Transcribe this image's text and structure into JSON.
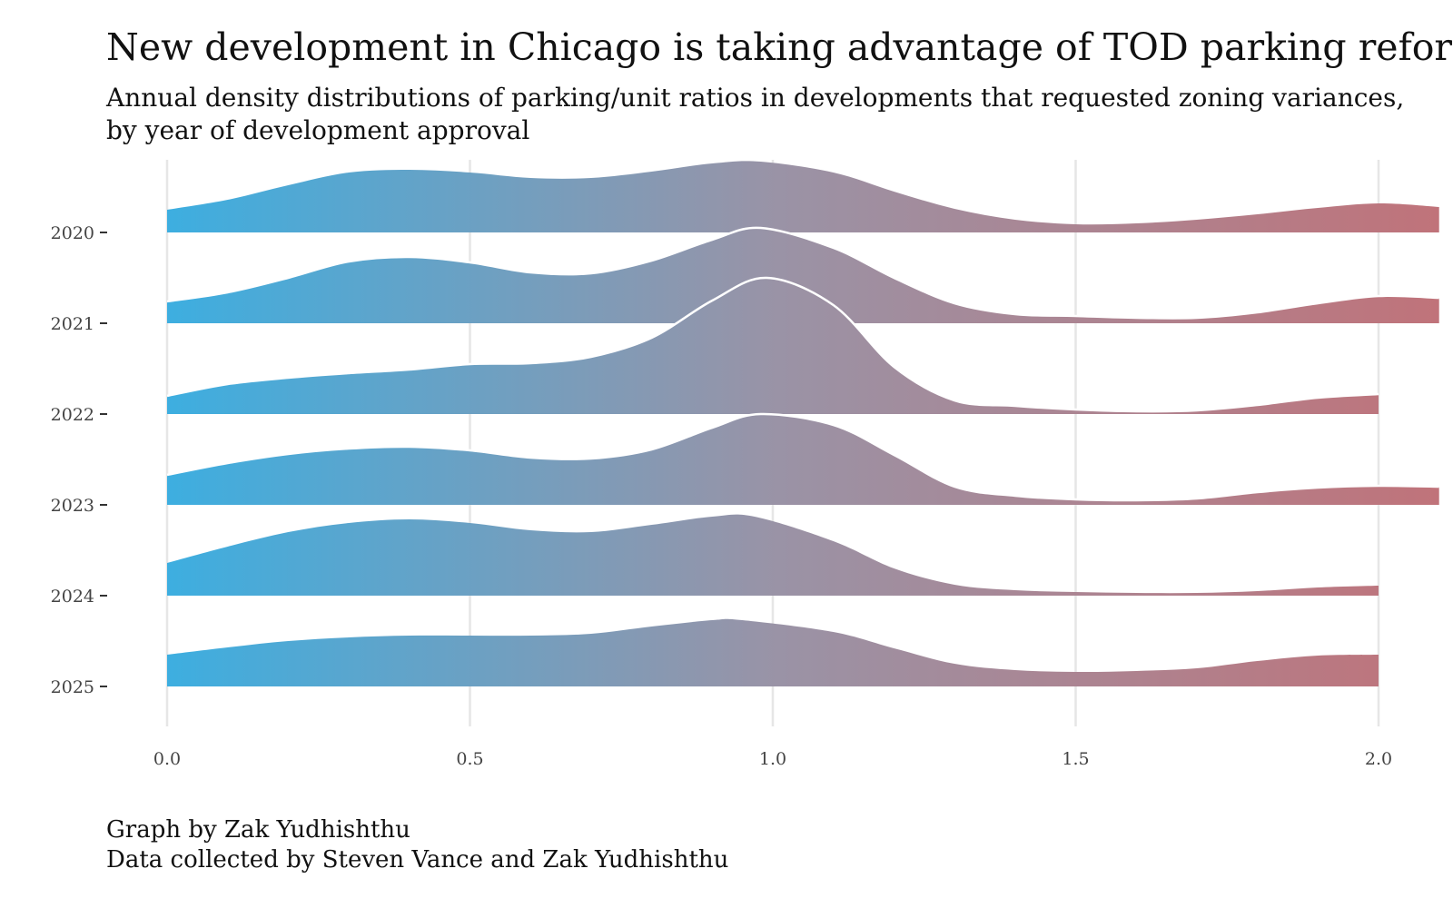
{
  "title": "New development in Chicago is taking advantage of TOD parking reforms",
  "subtitle_line1": "Annual density distributions of parking/unit ratios in developments that requested zoning variances,",
  "subtitle_line2": "by year of development approval",
  "caption_line1": "Graph by Zak Yudhishthu",
  "caption_line2": "Data collected by Steven Vance and Zak Yudhishthu",
  "colors": {
    "gradient_start": "#3daee0",
    "gradient_mid": "#9a93a6",
    "gradient_end": "#c0737a",
    "grid": "#e6e6e6",
    "outline": "#ffffff"
  },
  "chart_data": {
    "type": "ridgeline",
    "x_label": "",
    "y_label": "",
    "x_range": [
      0,
      2.1
    ],
    "x_ticks": [
      "0.0",
      "0.5",
      "1.0",
      "1.5",
      "2.0"
    ],
    "x_tick_values": [
      0,
      0.5,
      1.0,
      1.5,
      2.0
    ],
    "density_scale_note": "heights are relative density (1.0 = one row spacing)",
    "series": [
      {
        "name": "2020",
        "x_max": 2.1,
        "x": [
          0,
          0.1,
          0.2,
          0.3,
          0.4,
          0.5,
          0.6,
          0.7,
          0.8,
          0.9,
          0.98,
          1.1,
          1.2,
          1.3,
          1.4,
          1.5,
          1.6,
          1.7,
          1.8,
          1.9,
          2.0,
          2.1
        ],
        "y": [
          0.25,
          0.36,
          0.52,
          0.66,
          0.69,
          0.66,
          0.6,
          0.6,
          0.67,
          0.76,
          0.78,
          0.66,
          0.45,
          0.26,
          0.14,
          0.09,
          0.1,
          0.14,
          0.2,
          0.27,
          0.32,
          0.28
        ]
      },
      {
        "name": "2021",
        "x_max": 2.1,
        "x": [
          0,
          0.1,
          0.2,
          0.3,
          0.4,
          0.5,
          0.6,
          0.7,
          0.8,
          0.9,
          0.98,
          1.1,
          1.2,
          1.3,
          1.4,
          1.5,
          1.6,
          1.7,
          1.8,
          1.9,
          2.0,
          2.1
        ],
        "y": [
          0.24,
          0.34,
          0.5,
          0.68,
          0.73,
          0.67,
          0.56,
          0.55,
          0.69,
          0.92,
          1.05,
          0.83,
          0.5,
          0.22,
          0.1,
          0.08,
          0.06,
          0.06,
          0.12,
          0.22,
          0.3,
          0.28
        ]
      },
      {
        "name": "2022",
        "x_max": 2.0,
        "x": [
          0,
          0.1,
          0.2,
          0.3,
          0.4,
          0.5,
          0.6,
          0.7,
          0.8,
          0.9,
          0.99,
          1.1,
          1.2,
          1.3,
          1.4,
          1.5,
          1.6,
          1.7,
          1.8,
          1.9,
          2.0
        ],
        "y": [
          0.2,
          0.33,
          0.4,
          0.45,
          0.49,
          0.55,
          0.56,
          0.63,
          0.84,
          1.25,
          1.5,
          1.2,
          0.52,
          0.15,
          0.09,
          0.05,
          0.03,
          0.04,
          0.1,
          0.18,
          0.22
        ]
      },
      {
        "name": "2023",
        "x_max": 2.1,
        "x": [
          0,
          0.1,
          0.2,
          0.3,
          0.4,
          0.5,
          0.6,
          0.7,
          0.8,
          0.9,
          0.98,
          1.1,
          1.2,
          1.3,
          1.4,
          1.5,
          1.6,
          1.7,
          1.8,
          1.9,
          2.0,
          2.1
        ],
        "y": [
          0.33,
          0.46,
          0.56,
          0.62,
          0.64,
          0.6,
          0.52,
          0.51,
          0.61,
          0.85,
          1.0,
          0.88,
          0.55,
          0.2,
          0.1,
          0.06,
          0.05,
          0.07,
          0.14,
          0.19,
          0.21,
          0.2
        ]
      },
      {
        "name": "2024",
        "x_max": 2.0,
        "x": [
          0,
          0.1,
          0.2,
          0.3,
          0.4,
          0.5,
          0.6,
          0.7,
          0.8,
          0.9,
          0.97,
          1.1,
          1.2,
          1.3,
          1.4,
          1.5,
          1.6,
          1.7,
          1.8,
          1.9,
          2.0
        ],
        "y": [
          0.36,
          0.54,
          0.7,
          0.8,
          0.84,
          0.8,
          0.72,
          0.7,
          0.78,
          0.87,
          0.87,
          0.6,
          0.3,
          0.12,
          0.06,
          0.04,
          0.03,
          0.03,
          0.05,
          0.09,
          0.11
        ]
      },
      {
        "name": "2025",
        "x_max": 2.0,
        "x": [
          0,
          0.1,
          0.2,
          0.3,
          0.4,
          0.5,
          0.6,
          0.7,
          0.8,
          0.9,
          0.95,
          1.1,
          1.2,
          1.3,
          1.4,
          1.5,
          1.6,
          1.7,
          1.8,
          1.9,
          2.0
        ],
        "y": [
          0.35,
          0.43,
          0.5,
          0.54,
          0.56,
          0.56,
          0.56,
          0.58,
          0.66,
          0.73,
          0.73,
          0.6,
          0.42,
          0.25,
          0.18,
          0.16,
          0.17,
          0.2,
          0.28,
          0.34,
          0.35
        ]
      }
    ],
    "highlight_outline_series": [
      "2021",
      "2022",
      "2023"
    ]
  }
}
